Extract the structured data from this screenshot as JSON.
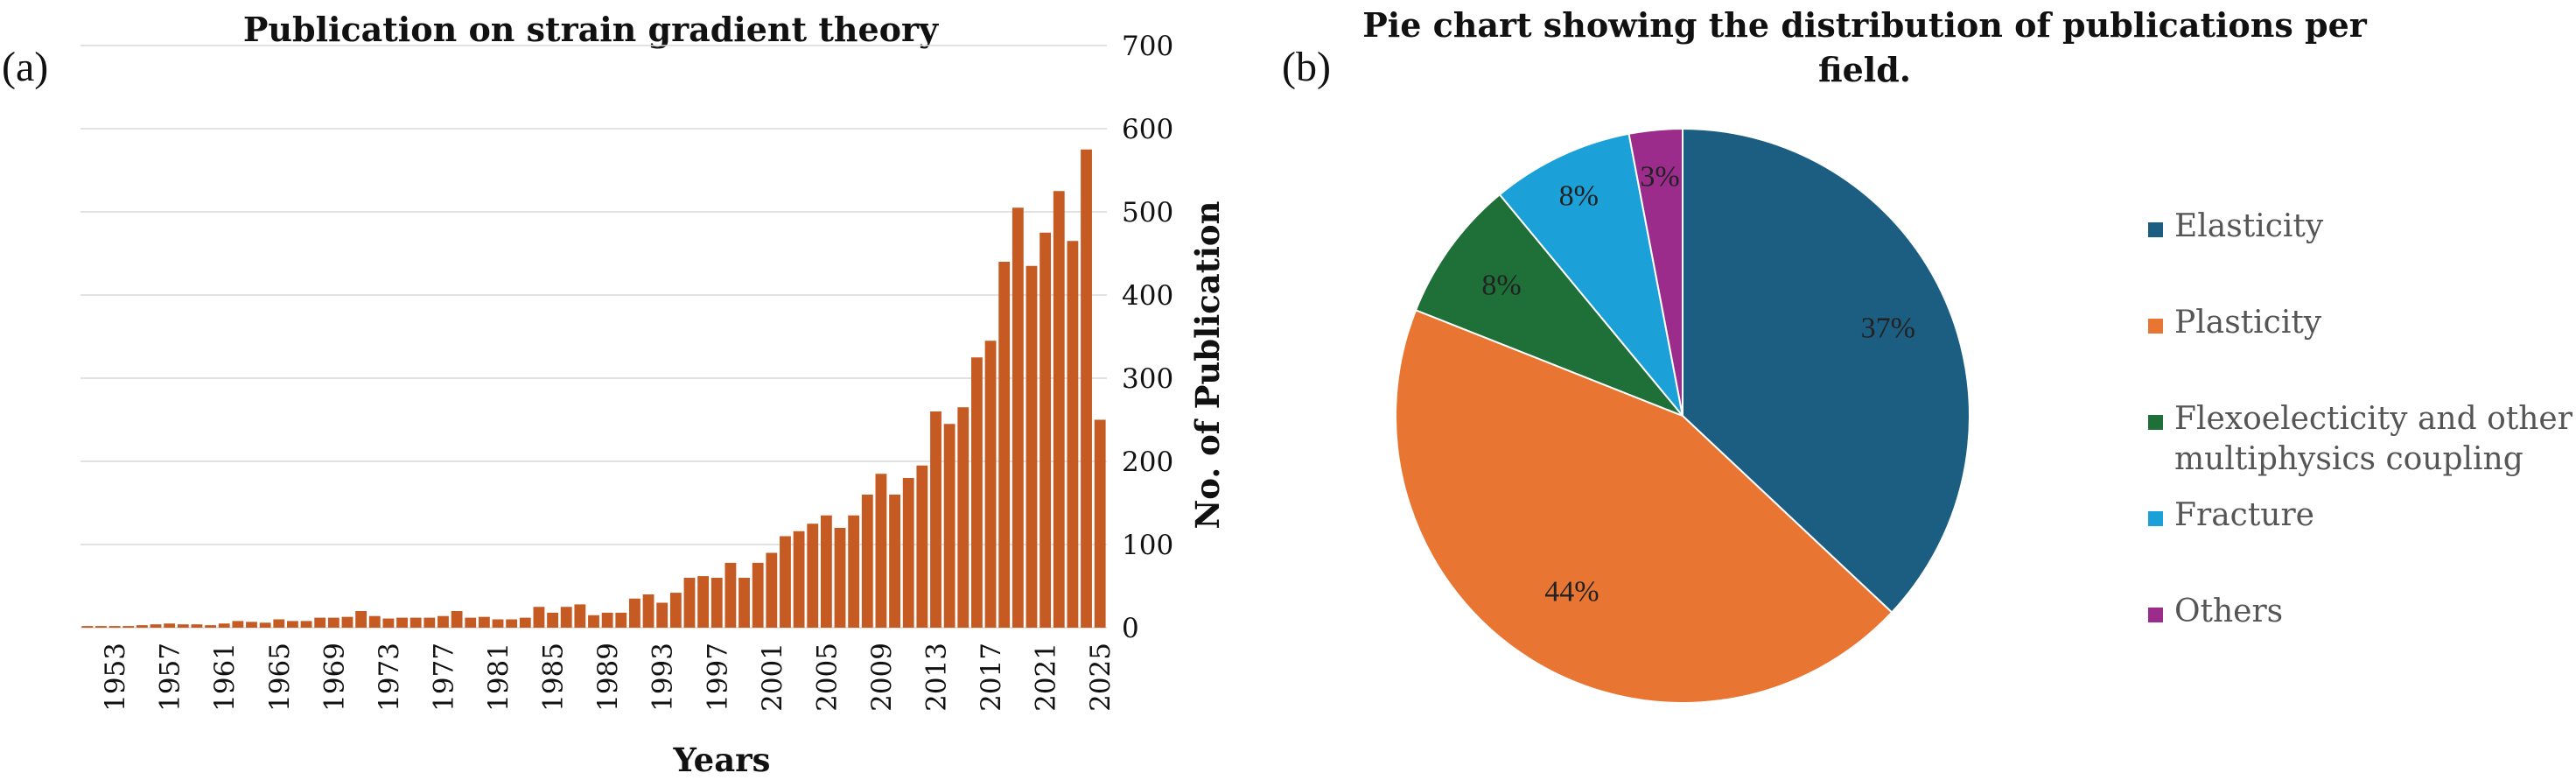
{
  "chart_data": [
    {
      "type": "bar",
      "panel_label": "(a)",
      "title": "Publication on strain gradient theory",
      "xlabel": "Years",
      "ylabel": "No. of Publication",
      "ylim": [
        0,
        700
      ],
      "yticks": [
        "0",
        "100",
        "200",
        "300",
        "400",
        "500",
        "600",
        "700"
      ],
      "grid": true,
      "color": "#C55A22",
      "x_tick_labels": [
        "1953",
        "1957",
        "1961",
        "1965",
        "1969",
        "1973",
        "1977",
        "1981",
        "1985",
        "1989",
        "1993",
        "1997",
        "2001",
        "2005",
        "2009",
        "2013",
        "2017",
        "2021",
        "2025"
      ],
      "categories": [
        1951,
        1952,
        1953,
        1954,
        1955,
        1956,
        1957,
        1958,
        1959,
        1960,
        1961,
        1962,
        1963,
        1964,
        1965,
        1966,
        1967,
        1968,
        1969,
        1970,
        1971,
        1972,
        1973,
        1974,
        1975,
        1976,
        1977,
        1978,
        1979,
        1980,
        1981,
        1982,
        1983,
        1984,
        1985,
        1986,
        1987,
        1988,
        1989,
        1990,
        1991,
        1992,
        1993,
        1994,
        1995,
        1996,
        1997,
        1998,
        1999,
        2000,
        2001,
        2002,
        2003,
        2004,
        2005,
        2006,
        2007,
        2008,
        2009,
        2010,
        2011,
        2012,
        2013,
        2014,
        2015,
        2016,
        2017,
        2018,
        2019,
        2020,
        2021,
        2022,
        2023,
        2024,
        2025
      ],
      "values": [
        2,
        2,
        2,
        2,
        3,
        4,
        5,
        4,
        4,
        3,
        5,
        8,
        7,
        6,
        10,
        8,
        8,
        12,
        12,
        13,
        20,
        14,
        11,
        12,
        12,
        12,
        14,
        20,
        12,
        13,
        10,
        10,
        12,
        25,
        18,
        25,
        28,
        15,
        18,
        18,
        35,
        40,
        30,
        42,
        60,
        62,
        60,
        78,
        60,
        78,
        90,
        110,
        116,
        125,
        135,
        120,
        135,
        160,
        185,
        160,
        180,
        195,
        260,
        245,
        265,
        325,
        345,
        440,
        505,
        435,
        475,
        525,
        465,
        575,
        250
      ]
    },
    {
      "type": "pie",
      "panel_label": "(b)",
      "title_lines": [
        "Pie chart showing the distribution of publications per",
        "field."
      ],
      "slices": [
        {
          "name": "Elasticity",
          "value": 37,
          "label": "37%",
          "color": "#1B5E82"
        },
        {
          "name": "Plasticity",
          "value": 44,
          "label": "44%",
          "color": "#E97532"
        },
        {
          "name": "Flexoelecticity and other multiphysics coupling",
          "value": 8,
          "label": "8%",
          "color": "#1E7038"
        },
        {
          "name": "Fracture",
          "value": 8,
          "label": "8%",
          "color": "#1BA0D8"
        },
        {
          "name": "Others",
          "value": 3,
          "label": "3%",
          "color": "#9B2C8C"
        }
      ],
      "legend": [
        {
          "lines": [
            "Elasticity"
          ]
        },
        {
          "lines": [
            "Plasticity"
          ]
        },
        {
          "lines": [
            "Flexoelecticity and other",
            "multiphysics coupling"
          ]
        },
        {
          "lines": [
            "Fracture"
          ]
        },
        {
          "lines": [
            "Others"
          ]
        }
      ],
      "legend_position": "right"
    }
  ]
}
